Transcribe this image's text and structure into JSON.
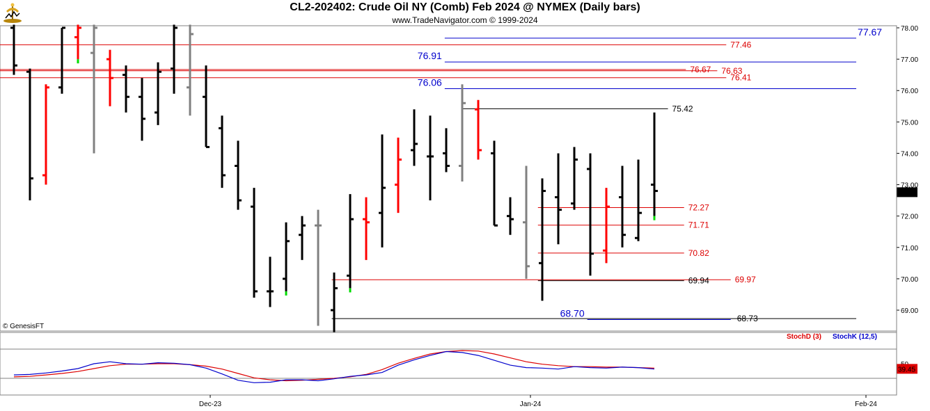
{
  "header": {
    "title": "CL2-202402:  Crude Oil NY (Comb) Feb 2024 @ NYMEX  (Daily bars)",
    "subtitle": "www.TradeNavigator.com © 1999-2024",
    "logo_icon": "trade-navigator-logo-icon"
  },
  "copyright": "© GenesisFT",
  "colors": {
    "up_bar": "#000000",
    "down_bar": "#ff0000",
    "neutral_bar": "#808080",
    "green_tick": "#00dd00",
    "resistance_red": "#dd0000",
    "support_black": "#000000",
    "blue_level": "#0000cc",
    "stoch_d": "#dd0000",
    "stoch_k": "#0000cc"
  },
  "chart_data": [
    {
      "type": "ohlc",
      "title": "CL2-202402:  Crude Oil NY (Comb) Feb 2024 @ NYMEX  (Daily bars)",
      "y_ticks": [
        "69.00",
        "70.00",
        "71.00",
        "72.00",
        "73.00",
        "74.00",
        "75.00",
        "76.00",
        "77.00",
        "78.00"
      ],
      "ylim": [
        68.4,
        78.1
      ],
      "x_ticks": [
        "Dec-23",
        "Jan-24",
        "Feb-24"
      ],
      "last_price": "72.76",
      "bars": [
        {
          "o": 78.0,
          "h": 78.1,
          "l": 76.5,
          "c": 76.8,
          "col": "up"
        },
        {
          "o": 76.6,
          "h": 76.7,
          "l": 72.5,
          "c": 73.2,
          "col": "up"
        },
        {
          "o": 73.3,
          "h": 76.2,
          "l": 73.0,
          "c": 76.1,
          "col": "down"
        },
        {
          "o": 76.1,
          "h": 78.0,
          "l": 75.9,
          "c": 78.0,
          "col": "up"
        },
        {
          "o": 77.7,
          "h": 78.1,
          "l": 77.0,
          "c": 78.0,
          "col": "down"
        },
        {
          "o": 77.2,
          "h": 78.1,
          "l": 74.0,
          "c": 78.0,
          "col": "neutral"
        },
        {
          "o": 77.0,
          "h": 77.3,
          "l": 75.5,
          "c": 76.4,
          "col": "down"
        },
        {
          "o": 76.5,
          "h": 76.8,
          "l": 75.3,
          "c": 75.8,
          "col": "up"
        },
        {
          "o": 75.8,
          "h": 76.4,
          "l": 74.4,
          "c": 75.1,
          "col": "up"
        },
        {
          "o": 75.3,
          "h": 76.9,
          "l": 74.9,
          "c": 76.6,
          "col": "up"
        },
        {
          "o": 76.7,
          "h": 78.1,
          "l": 75.9,
          "c": 78.0,
          "col": "up"
        },
        {
          "o": 76.1,
          "h": 78.1,
          "l": 75.2,
          "c": 77.8,
          "col": "neutral"
        },
        {
          "o": 75.8,
          "h": 76.8,
          "l": 74.2,
          "c": 74.2,
          "col": "up"
        },
        {
          "o": 74.8,
          "h": 75.2,
          "l": 72.9,
          "c": 73.3,
          "col": "up"
        },
        {
          "o": 73.6,
          "h": 74.4,
          "l": 72.2,
          "c": 72.5,
          "col": "up"
        },
        {
          "o": 72.3,
          "h": 72.9,
          "l": 69.4,
          "c": 69.6,
          "col": "up"
        },
        {
          "o": 69.6,
          "h": 70.7,
          "l": 69.1,
          "c": 69.6,
          "col": "up"
        },
        {
          "o": 70.0,
          "h": 71.8,
          "l": 69.6,
          "c": 71.2,
          "col": "up"
        },
        {
          "o": 71.4,
          "h": 72.0,
          "l": 70.6,
          "c": 71.7,
          "col": "up"
        },
        {
          "o": 71.7,
          "h": 72.2,
          "l": 68.5,
          "c": 71.7,
          "col": "neutral"
        },
        {
          "o": 69.0,
          "h": 70.2,
          "l": 68.3,
          "c": 69.7,
          "col": "up"
        },
        {
          "o": 70.1,
          "h": 72.7,
          "l": 69.7,
          "c": 71.9,
          "col": "up"
        },
        {
          "o": 71.9,
          "h": 72.6,
          "l": 70.6,
          "c": 71.8,
          "col": "down"
        },
        {
          "o": 72.1,
          "h": 74.6,
          "l": 71.0,
          "c": 72.9,
          "col": "up"
        },
        {
          "o": 73.0,
          "h": 74.5,
          "l": 72.1,
          "c": 73.8,
          "col": "down"
        },
        {
          "o": 74.1,
          "h": 75.4,
          "l": 73.6,
          "c": 74.3,
          "col": "up"
        },
        {
          "o": 73.9,
          "h": 75.2,
          "l": 72.5,
          "c": 73.9,
          "col": "up"
        },
        {
          "o": 74.0,
          "h": 74.8,
          "l": 73.4,
          "c": 73.6,
          "col": "up"
        },
        {
          "o": 73.6,
          "h": 76.2,
          "l": 73.1,
          "c": 75.6,
          "col": "neutral"
        },
        {
          "o": 75.4,
          "h": 75.7,
          "l": 73.8,
          "c": 74.1,
          "col": "down"
        },
        {
          "o": 74.0,
          "h": 74.4,
          "l": 71.7,
          "c": 71.7,
          "col": "up"
        },
        {
          "o": 72.0,
          "h": 72.6,
          "l": 71.4,
          "c": 71.9,
          "col": "up"
        },
        {
          "o": 71.8,
          "h": 73.6,
          "l": 70.0,
          "c": 70.4,
          "col": "neutral"
        },
        {
          "o": 70.5,
          "h": 73.2,
          "l": 69.3,
          "c": 72.8,
          "col": "up"
        },
        {
          "o": 72.6,
          "h": 74.0,
          "l": 71.1,
          "c": 72.2,
          "col": "up"
        },
        {
          "o": 72.4,
          "h": 74.2,
          "l": 72.2,
          "c": 73.8,
          "col": "up"
        },
        {
          "o": 73.5,
          "h": 74.0,
          "l": 70.1,
          "c": 70.8,
          "col": "up"
        },
        {
          "o": 70.9,
          "h": 72.9,
          "l": 70.5,
          "c": 72.3,
          "col": "down"
        },
        {
          "o": 72.6,
          "h": 73.6,
          "l": 71.0,
          "c": 71.4,
          "col": "up"
        },
        {
          "o": 71.3,
          "h": 73.8,
          "l": 71.2,
          "c": 72.1,
          "col": "up"
        },
        {
          "o": 73.0,
          "h": 75.3,
          "l": 72.0,
          "c": 72.8,
          "col": "up"
        }
      ],
      "levels": [
        {
          "label": "77.67",
          "value": 77.67,
          "color": "blue",
          "big": true,
          "x1": 0.496,
          "x2": 0.955,
          "label_pos": "right-end"
        },
        {
          "label": "77.46",
          "value": 77.46,
          "color": "red",
          "big": false,
          "x1": 0.0,
          "x2": 0.81,
          "label_pos": "after-line"
        },
        {
          "label": "76.91",
          "value": 76.91,
          "color": "blue",
          "big": true,
          "x1": 0.496,
          "x2": 0.955,
          "label_pos": "left-start"
        },
        {
          "label": "76.67",
          "value": 76.67,
          "color": "red",
          "big": false,
          "x1": 0.0,
          "x2": 0.765,
          "label_pos": "after-line"
        },
        {
          "label": "76.63",
          "value": 76.63,
          "color": "red",
          "big": false,
          "x1": 0.0,
          "x2": 0.8,
          "label_pos": "after-line"
        },
        {
          "label": "76.41",
          "value": 76.41,
          "color": "red",
          "big": false,
          "x1": 0.0,
          "x2": 0.81,
          "label_pos": "after-line"
        },
        {
          "label": "76.06",
          "value": 76.06,
          "color": "blue",
          "big": true,
          "x1": 0.496,
          "x2": 0.955,
          "label_pos": "left-start"
        },
        {
          "label": "75.42",
          "value": 75.42,
          "color": "black",
          "big": false,
          "x1": 0.515,
          "x2": 0.745,
          "label_pos": "after-line"
        },
        {
          "label": "72.27",
          "value": 72.27,
          "color": "red",
          "big": false,
          "x1": 0.6,
          "x2": 0.763,
          "label_pos": "after-line"
        },
        {
          "label": "71.71",
          "value": 71.71,
          "color": "red",
          "big": false,
          "x1": 0.6,
          "x2": 0.763,
          "label_pos": "after-line"
        },
        {
          "label": "70.82",
          "value": 70.82,
          "color": "red",
          "big": false,
          "x1": 0.6,
          "x2": 0.763,
          "label_pos": "after-line"
        },
        {
          "label": "69.97",
          "value": 69.97,
          "color": "red",
          "big": false,
          "x1": 0.37,
          "x2": 0.815,
          "label_pos": "after-line"
        },
        {
          "label": "69.94",
          "value": 69.94,
          "color": "black",
          "big": false,
          "x1": 0.6,
          "x2": 0.763,
          "label_pos": "after-line"
        },
        {
          "label": "68.73",
          "value": 68.73,
          "color": "black",
          "big": false,
          "x1": 0.37,
          "x2": 0.955,
          "label_pos": "mid"
        },
        {
          "label": "68.70",
          "value": 68.7,
          "color": "blue",
          "big": true,
          "x1": 0.655,
          "x2": 0.815,
          "label_pos": "left-start"
        }
      ]
    },
    {
      "type": "line",
      "ylim": [
        0,
        100
      ],
      "y_ticks": [
        "50"
      ],
      "last_value": "39.45",
      "legend": [
        {
          "name": "StochD (3)",
          "color": "#dd0000"
        },
        {
          "name": "StochK (12,5)",
          "color": "#0000cc"
        }
      ],
      "series": [
        {
          "name": "StochD (3)",
          "values": [
            23,
            24,
            27,
            30,
            34,
            40,
            46,
            49,
            49,
            50,
            50,
            48,
            45,
            39,
            30,
            21,
            17,
            15,
            16,
            18,
            20,
            23,
            28,
            38,
            51,
            61,
            70,
            75,
            77,
            76,
            70,
            62,
            54,
            49,
            46,
            44,
            44,
            43,
            43,
            42,
            41
          ]
        },
        {
          "name": "StochK (12,5)",
          "values": [
            27,
            28,
            31,
            35,
            40,
            50,
            54,
            50,
            49,
            52,
            51,
            48,
            41,
            29,
            16,
            11,
            12,
            17,
            17,
            15,
            19,
            24,
            27,
            32,
            47,
            58,
            67,
            75,
            73,
            67,
            57,
            47,
            42,
            41,
            39,
            44,
            42,
            41,
            43,
            42,
            39
          ]
        }
      ]
    }
  ]
}
